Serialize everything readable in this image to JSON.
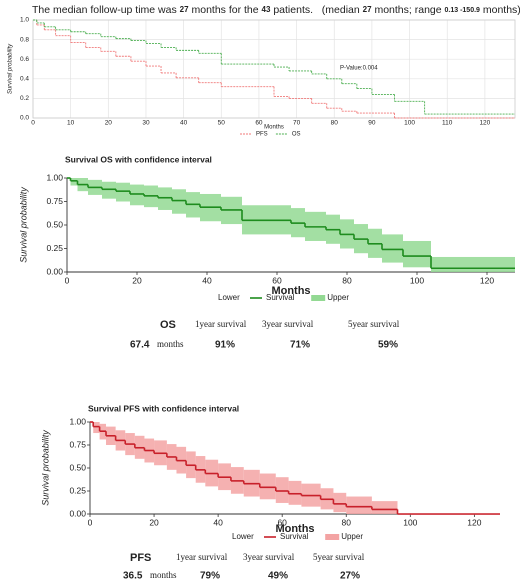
{
  "header": {
    "parts": [
      "The median follow-up time was ",
      "27",
      " months for the ",
      "43",
      " patients.   (median ",
      "27",
      " months; range ",
      "0.13 -150.9",
      " months)."
    ]
  },
  "chart_data": [
    {
      "type": "km",
      "line_style": "dotted",
      "grid": true,
      "frame": true,
      "xlabel": "Months",
      "ylabel": "Survival probability",
      "annotation": "P-Value:0.004",
      "xlim": [
        0,
        128
      ],
      "xticks": [
        0,
        10,
        20,
        30,
        40,
        50,
        60,
        70,
        80,
        90,
        100,
        110,
        120
      ],
      "ylim": [
        0,
        1
      ],
      "yticks": [
        {
          "value": 0,
          "label": "0.0"
        },
        0.2,
        0.4,
        0.6,
        0.8,
        {
          "value": 1,
          "label": "1.0"
        }
      ],
      "x": [
        0,
        1,
        3,
        6,
        10,
        14,
        18,
        22,
        26,
        30,
        34,
        38,
        44,
        50,
        64,
        68,
        74,
        78,
        82,
        86,
        90,
        96,
        104
      ],
      "series": [
        {
          "name": "PFS",
          "color": "#f07a7a",
          "values": [
            1,
            0.95,
            0.9,
            0.84,
            0.77,
            0.72,
            0.68,
            0.63,
            0.58,
            0.53,
            0.46,
            0.41,
            0.36,
            0.32,
            0.22,
            0.2,
            0.15,
            0.1,
            0.07,
            0.05,
            0.05,
            0,
            0
          ]
        },
        {
          "name": "OS",
          "color": "#4caf50",
          "values": [
            1,
            0.97,
            0.93,
            0.9,
            0.88,
            0.86,
            0.83,
            0.81,
            0.79,
            0.76,
            0.72,
            0.69,
            0.66,
            0.55,
            0.52,
            0.48,
            0.45,
            0.4,
            0.35,
            0.3,
            0.24,
            0.17,
            0.04
          ]
        }
      ]
    },
    {
      "type": "km_ci",
      "title": "Survival OS with confidence interval",
      "xlabel": "Months",
      "ylabel": "Survival probability",
      "xlim": [
        0,
        128
      ],
      "xticks": [
        0,
        20,
        40,
        60,
        80,
        100,
        120
      ],
      "ylim": [
        0,
        1
      ],
      "yticks": [
        {
          "value": 0,
          "label": "0.00"
        },
        0.25,
        {
          "value": 0.5,
          "label": "0.50"
        },
        0.75,
        {
          "value": 1,
          "label": "1.00"
        }
      ],
      "x": [
        0,
        1,
        3,
        6,
        10,
        14,
        18,
        22,
        26,
        30,
        34,
        38,
        44,
        50,
        64,
        68,
        74,
        78,
        82,
        86,
        90,
        96,
        104
      ],
      "series": [
        {
          "name": "Lower",
          "values": [
            1,
            0.92,
            0.86,
            0.82,
            0.78,
            0.75,
            0.71,
            0.69,
            0.66,
            0.62,
            0.58,
            0.54,
            0.51,
            0.4,
            0.37,
            0.33,
            0.3,
            0.25,
            0.2,
            0.15,
            0.1,
            0.05,
            0
          ]
        },
        {
          "name": "Survival",
          "color": "#1e8c1e",
          "values": [
            1,
            0.97,
            0.93,
            0.9,
            0.88,
            0.86,
            0.83,
            0.81,
            0.79,
            0.76,
            0.72,
            0.69,
            0.66,
            0.55,
            0.52,
            0.48,
            0.45,
            0.4,
            0.35,
            0.3,
            0.24,
            0.17,
            0.04
          ]
        },
        {
          "name": "Upper",
          "color": "#93d993",
          "values": [
            1,
            1,
            1,
            0.98,
            0.96,
            0.95,
            0.93,
            0.92,
            0.9,
            0.88,
            0.85,
            0.83,
            0.8,
            0.71,
            0.68,
            0.64,
            0.61,
            0.56,
            0.51,
            0.46,
            0.4,
            0.33,
            0.16
          ]
        }
      ]
    },
    {
      "type": "km_ci",
      "title": "Survival PFS with confidence interval",
      "xlabel": "Months",
      "ylabel": "Survival probability",
      "xlim": [
        0,
        128
      ],
      "xticks": [
        0,
        20,
        40,
        60,
        80,
        100,
        120
      ],
      "ylim": [
        0,
        1
      ],
      "yticks": [
        {
          "value": 0,
          "label": "0.00"
        },
        0.25,
        {
          "value": 0.5,
          "label": "0.50"
        },
        0.75,
        {
          "value": 1,
          "label": "1.00"
        }
      ],
      "x": [
        0,
        1,
        3,
        5,
        8,
        11,
        14,
        17,
        20,
        24,
        27,
        30,
        33,
        36,
        40,
        44,
        48,
        53,
        58,
        62,
        66,
        72,
        76,
        80,
        88,
        96
      ],
      "series": [
        {
          "name": "Lower",
          "values": [
            1,
            0.88,
            0.81,
            0.75,
            0.69,
            0.64,
            0.6,
            0.56,
            0.53,
            0.48,
            0.44,
            0.39,
            0.34,
            0.3,
            0.26,
            0.22,
            0.19,
            0.16,
            0.12,
            0.1,
            0.08,
            0.05,
            0.02,
            0,
            0,
            0
          ]
        },
        {
          "name": "Survival",
          "color": "#c8202a",
          "values": [
            1,
            0.95,
            0.9,
            0.85,
            0.8,
            0.76,
            0.72,
            0.69,
            0.66,
            0.62,
            0.58,
            0.53,
            0.48,
            0.44,
            0.4,
            0.36,
            0.33,
            0.29,
            0.25,
            0.22,
            0.2,
            0.16,
            0.11,
            0.08,
            0.05,
            0
          ]
        },
        {
          "name": "Upper",
          "color": "#f3a3a3",
          "values": [
            1,
            1,
            0.98,
            0.95,
            0.91,
            0.88,
            0.85,
            0.82,
            0.8,
            0.76,
            0.73,
            0.68,
            0.63,
            0.59,
            0.55,
            0.51,
            0.48,
            0.44,
            0.4,
            0.36,
            0.33,
            0.28,
            0.23,
            0.19,
            0.14,
            0
          ]
        }
      ]
    }
  ],
  "summaries": [
    {
      "name": "OS",
      "median": 67.4,
      "unit": "months",
      "rates": [
        {
          "label": "1year survival",
          "value": "91%"
        },
        {
          "label": "3year survival",
          "value": "71%"
        },
        {
          "label": "5year survival",
          "value": "59%"
        }
      ]
    },
    {
      "name": "PFS",
      "median": 36.5,
      "unit": "months",
      "rates": [
        {
          "label": "1year survival",
          "value": "79%"
        },
        {
          "label": "3year survival",
          "value": "49%"
        },
        {
          "label": "5year survival",
          "value": "27%"
        }
      ]
    }
  ]
}
